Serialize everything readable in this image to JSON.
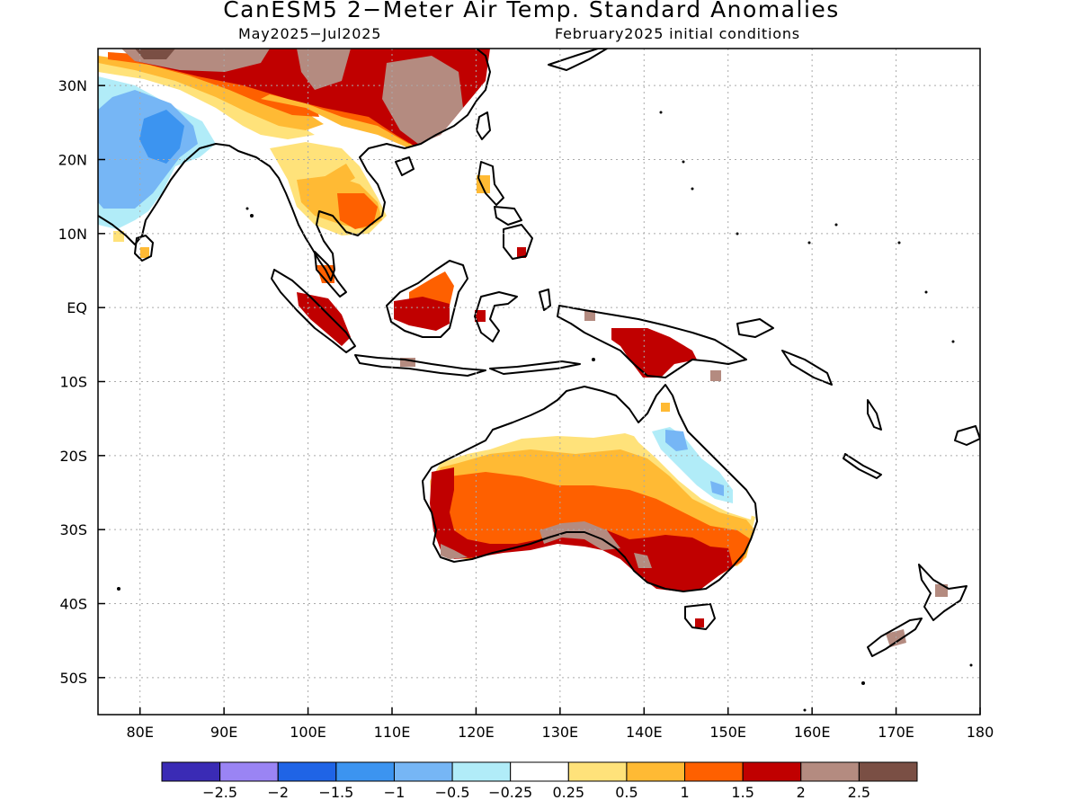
{
  "header": {
    "title": "CanESM5 2−Meter Air Temp. Standard Anomalies",
    "valid_period": "May2025−Jul2025",
    "init": "February2025 initial conditions"
  },
  "map": {
    "lon_range": [
      75,
      180
    ],
    "lat_range": [
      -55,
      35
    ],
    "lat_labels": [
      {
        "lat": 30,
        "text": "30N"
      },
      {
        "lat": 20,
        "text": "20N"
      },
      {
        "lat": 10,
        "text": "10N"
      },
      {
        "lat": 0,
        "text": "EQ"
      },
      {
        "lat": -10,
        "text": "10S"
      },
      {
        "lat": -20,
        "text": "20S"
      },
      {
        "lat": -30,
        "text": "30S"
      },
      {
        "lat": -40,
        "text": "40S"
      },
      {
        "lat": -50,
        "text": "50S"
      }
    ],
    "lon_labels": [
      {
        "lon": 80,
        "text": "80E"
      },
      {
        "lon": 90,
        "text": "90E"
      },
      {
        "lon": 100,
        "text": "100E"
      },
      {
        "lon": 110,
        "text": "110E"
      },
      {
        "lon": 120,
        "text": "120E"
      },
      {
        "lon": 130,
        "text": "130E"
      },
      {
        "lon": 140,
        "text": "140E"
      },
      {
        "lon": 150,
        "text": "150E"
      },
      {
        "lon": 160,
        "text": "160E"
      },
      {
        "lon": 170,
        "text": "170E"
      },
      {
        "lon": 180,
        "text": "180"
      }
    ],
    "grid": true
  },
  "colorbar": {
    "colors": [
      "#3a2bb5",
      "#9a84f4",
      "#1f64e6",
      "#3c94f0",
      "#76b6f5",
      "#b1ecf8",
      "#ffffff",
      "#ffe27a",
      "#ffba34",
      "#fe6000",
      "#c00000",
      "#b48b80",
      "#7a4f44"
    ],
    "labels": [
      "−2.5",
      "−2",
      "−1.5",
      "−1",
      "−0.5",
      "−0.25",
      "0.25",
      "0.5",
      "1",
      "1.5",
      "2",
      "2.5"
    ]
  }
}
